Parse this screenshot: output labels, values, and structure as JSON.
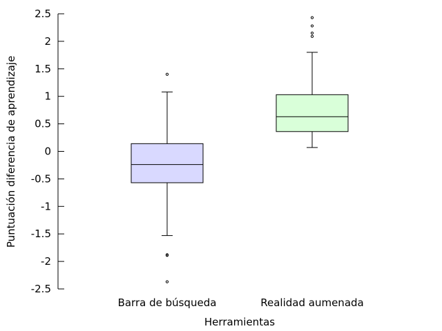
{
  "chart_data": {
    "type": "box",
    "title": "",
    "xlabel": "Herramientas",
    "ylabel": "Puntuación diferencia de aprendizaje",
    "ylim": [
      -2.5,
      2.5
    ],
    "yticks": [
      -2.5,
      -2,
      -1.5,
      -1,
      -0.5,
      0,
      0.5,
      1,
      1.5,
      2,
      2.5
    ],
    "ytick_labels": [
      "-2.5",
      "-2",
      "-1.5",
      "-1",
      "-0.5",
      "0",
      "0.5",
      "1",
      "1.5",
      "2",
      "2.5"
    ],
    "grid": false,
    "legend": "none",
    "categories": [
      "Barra de búsqueda",
      "Realidad aumenada"
    ],
    "series": [
      {
        "category": "Barra de búsqueda",
        "whisker_low": -1.53,
        "q1": -0.57,
        "median": -0.24,
        "q3": 0.14,
        "whisker_high": 1.08,
        "outliers": [
          1.4,
          -1.88,
          -1.89,
          -2.37
        ],
        "fill": "#d9d9ff"
      },
      {
        "category": "Realidad aumenada",
        "whisker_low": 0.07,
        "q1": 0.36,
        "median": 0.63,
        "q3": 1.03,
        "whisker_high": 1.8,
        "outliers": [
          2.43,
          2.28,
          2.15,
          2.09
        ],
        "fill": "#d9ffd9"
      }
    ]
  }
}
